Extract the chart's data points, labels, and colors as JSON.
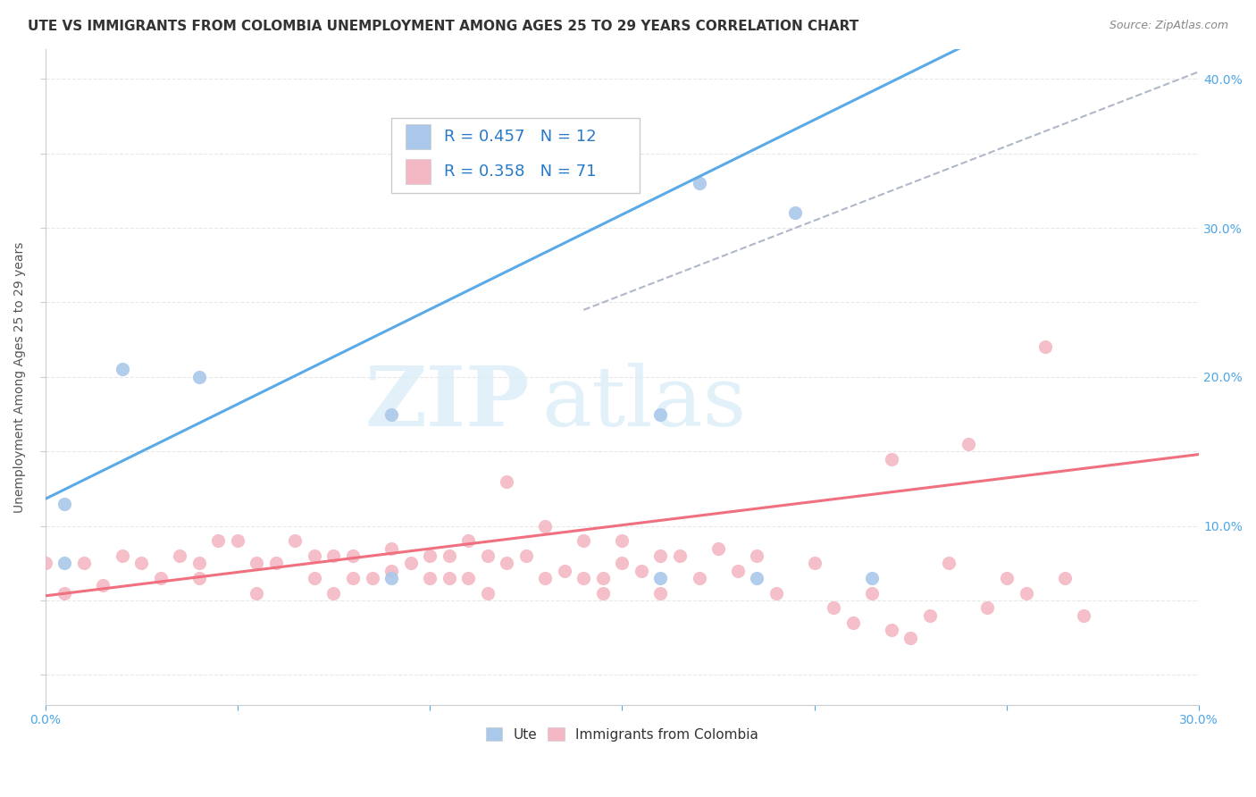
{
  "title": "UTE VS IMMIGRANTS FROM COLOMBIA UNEMPLOYMENT AMONG AGES 25 TO 29 YEARS CORRELATION CHART",
  "source": "Source: ZipAtlas.com",
  "ylabel": "Unemployment Among Ages 25 to 29 years",
  "xlim": [
    0.0,
    0.3
  ],
  "ylim": [
    -0.02,
    0.42
  ],
  "plot_ylim": [
    0.0,
    0.42
  ],
  "ute_color": "#aac8ea",
  "colombia_color": "#f4b8c4",
  "ute_line_color": "#5baae8",
  "colombia_line_color": "#f07080",
  "ute_R": 0.457,
  "ute_N": 12,
  "colombia_R": 0.358,
  "colombia_N": 71,
  "watermark_zip": "ZIP",
  "watermark_atlas": "atlas",
  "legend_label_ute": "Ute",
  "legend_label_colombia": "Immigrants from Colombia",
  "ute_scatter_x": [
    0.005,
    0.005,
    0.02,
    0.04,
    0.09,
    0.09,
    0.16,
    0.16,
    0.17,
    0.185,
    0.195,
    0.215
  ],
  "ute_scatter_y": [
    0.115,
    0.075,
    0.205,
    0.2,
    0.175,
    0.065,
    0.175,
    0.065,
    0.33,
    0.065,
    0.31,
    0.065
  ],
  "colombia_scatter_x": [
    0.0,
    0.005,
    0.01,
    0.015,
    0.02,
    0.025,
    0.03,
    0.035,
    0.04,
    0.04,
    0.045,
    0.05,
    0.055,
    0.055,
    0.06,
    0.065,
    0.07,
    0.07,
    0.075,
    0.075,
    0.08,
    0.08,
    0.085,
    0.09,
    0.09,
    0.095,
    0.1,
    0.1,
    0.105,
    0.105,
    0.11,
    0.11,
    0.115,
    0.115,
    0.12,
    0.12,
    0.125,
    0.13,
    0.13,
    0.135,
    0.14,
    0.14,
    0.145,
    0.145,
    0.15,
    0.15,
    0.155,
    0.16,
    0.16,
    0.165,
    0.17,
    0.175,
    0.18,
    0.185,
    0.19,
    0.2,
    0.205,
    0.21,
    0.215,
    0.22,
    0.225,
    0.23,
    0.235,
    0.24,
    0.245,
    0.25,
    0.255,
    0.26,
    0.265,
    0.27,
    0.22
  ],
  "colombia_scatter_y": [
    0.075,
    0.055,
    0.075,
    0.06,
    0.08,
    0.075,
    0.065,
    0.08,
    0.065,
    0.075,
    0.09,
    0.09,
    0.075,
    0.055,
    0.075,
    0.09,
    0.08,
    0.065,
    0.08,
    0.055,
    0.065,
    0.08,
    0.065,
    0.085,
    0.07,
    0.075,
    0.065,
    0.08,
    0.08,
    0.065,
    0.09,
    0.065,
    0.055,
    0.08,
    0.13,
    0.075,
    0.08,
    0.1,
    0.065,
    0.07,
    0.065,
    0.09,
    0.065,
    0.055,
    0.09,
    0.075,
    0.07,
    0.08,
    0.055,
    0.08,
    0.065,
    0.085,
    0.07,
    0.08,
    0.055,
    0.075,
    0.045,
    0.035,
    0.055,
    0.03,
    0.025,
    0.04,
    0.075,
    0.155,
    0.045,
    0.065,
    0.055,
    0.22,
    0.065,
    0.04,
    0.145
  ],
  "background_color": "#ffffff",
  "grid_color": "#e8e8e8",
  "title_fontsize": 11,
  "axis_label_fontsize": 10,
  "tick_fontsize": 10,
  "stat_fontsize": 13,
  "stat_color": "#2979c7",
  "dashed_line_x": [
    0.14,
    0.3
  ],
  "dashed_line_y": [
    0.245,
    0.405
  ]
}
